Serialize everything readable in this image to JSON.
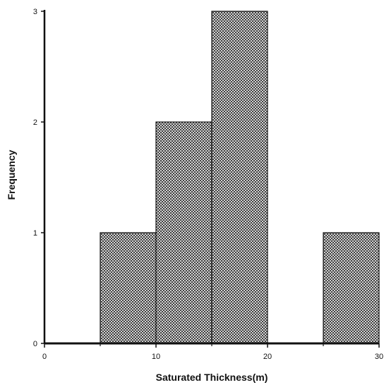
{
  "chart_data": {
    "type": "bar",
    "title": "",
    "xlabel": "Saturated Thickness(m)",
    "ylabel": "Frequency",
    "bins": [
      {
        "x0": 5,
        "x1": 10,
        "value": 1
      },
      {
        "x0": 10,
        "x1": 15,
        "value": 2
      },
      {
        "x0": 15,
        "x1": 20,
        "value": 3
      },
      {
        "x0": 25,
        "x1": 30,
        "value": 1
      }
    ],
    "xlim": [
      0,
      30
    ],
    "ylim": [
      0,
      3
    ],
    "x_ticks": [
      0,
      10,
      20,
      30
    ],
    "x_tick_labels": [
      "0",
      "10",
      "20",
      "30"
    ],
    "x_minor_ticks": [
      5,
      15,
      25
    ],
    "y_ticks": [
      0,
      1,
      2,
      3
    ],
    "y_tick_labels": [
      "0",
      "1",
      "2",
      "3"
    ],
    "grid": false,
    "bar_fill": "crosshatch",
    "colors": {
      "bar_stroke": "#111111",
      "hatch": "#222222",
      "axis": "#111111"
    }
  }
}
